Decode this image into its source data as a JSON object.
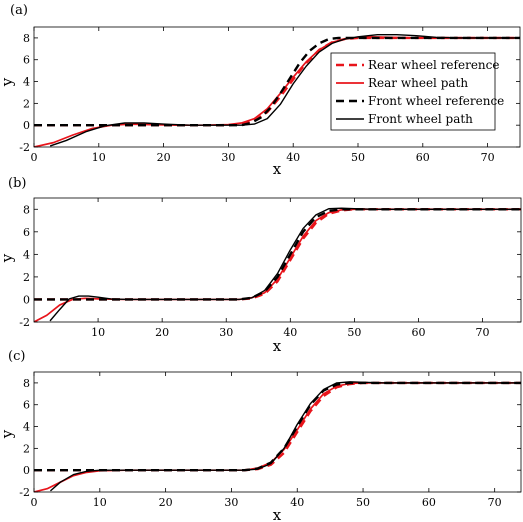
{
  "colors": {
    "rear": "#e8141b",
    "front": "#000000"
  },
  "legend": {
    "entries": [
      {
        "label": "Rear wheel reference",
        "series": "rear_reference"
      },
      {
        "label": "Rear wheel path",
        "series": "rear_path"
      },
      {
        "label": "Front wheel reference",
        "series": "front_reference"
      },
      {
        "label": "Front wheel path",
        "series": "front_path"
      }
    ]
  },
  "chart_data": [
    {
      "type": "line",
      "panel_label": "(a)",
      "xlabel": "x",
      "ylabel": "y",
      "xlim": [
        0,
        75
      ],
      "ylim": [
        -2,
        9
      ],
      "xticks": [
        0,
        10,
        20,
        30,
        40,
        50,
        60,
        70
      ],
      "yticks": [
        -2,
        0,
        2,
        4,
        6,
        8
      ],
      "grid": false,
      "legend_position": "top-right",
      "series": [
        {
          "name": "Rear wheel reference",
          "style": "dashed",
          "x": [
            0,
            30,
            32,
            34,
            36,
            38,
            40,
            42,
            44,
            46,
            48,
            50,
            75
          ],
          "y": [
            0,
            0,
            0.1,
            0.4,
            1.2,
            2.6,
            4.2,
            5.7,
            6.9,
            7.6,
            7.9,
            8,
            8
          ]
        },
        {
          "name": "Rear wheel path",
          "style": "solid",
          "x": [
            0,
            3,
            6,
            9,
            12,
            15,
            18,
            22,
            26,
            30,
            32,
            34,
            36,
            38,
            40,
            42,
            44,
            46,
            48,
            50,
            52,
            55,
            58,
            62,
            66,
            75
          ],
          "y": [
            -2,
            -1.6,
            -0.9,
            -0.3,
            0,
            0.1,
            0.05,
            0,
            0,
            0.05,
            0.2,
            0.6,
            1.5,
            2.9,
            4.4,
            5.8,
            6.9,
            7.6,
            7.9,
            8.05,
            8.1,
            8.05,
            8,
            8,
            8,
            8
          ]
        },
        {
          "name": "Front wheel reference",
          "style": "dashed",
          "x": [
            0,
            32,
            33.5,
            35,
            36.5,
            38,
            39.5,
            41,
            42.5,
            44,
            45.5,
            47,
            75
          ],
          "y": [
            0,
            0,
            0.2,
            0.7,
            1.6,
            2.9,
            4.3,
            5.7,
            6.8,
            7.5,
            7.9,
            8,
            8
          ]
        },
        {
          "name": "Front wheel path",
          "style": "solid",
          "x": [
            2.5,
            5,
            8,
            11,
            14,
            17,
            20,
            24,
            28,
            32,
            34,
            36,
            38,
            40,
            42,
            44,
            46,
            48,
            50,
            53,
            56,
            59,
            62,
            66,
            75
          ],
          "y": [
            -1.9,
            -1.4,
            -0.6,
            -0.05,
            0.2,
            0.2,
            0.1,
            0,
            0,
            0,
            0.1,
            0.6,
            1.9,
            3.8,
            5.4,
            6.7,
            7.5,
            7.9,
            8.1,
            8.3,
            8.3,
            8.2,
            8.05,
            8,
            8
          ]
        }
      ]
    },
    {
      "type": "line",
      "panel_label": "(b)",
      "xlabel": "x",
      "ylabel": "y",
      "xlim": [
        0,
        76
      ],
      "ylim": [
        -2,
        9
      ],
      "xticks": [
        10,
        20,
        30,
        40,
        50,
        60,
        70
      ],
      "yticks": [
        -2,
        0,
        2,
        4,
        6,
        8
      ],
      "grid": false,
      "series": [
        {
          "name": "Rear wheel reference",
          "style": "dashed",
          "x": [
            0,
            32,
            34,
            36,
            38,
            40,
            42,
            44,
            46,
            48,
            50,
            52,
            76
          ],
          "y": [
            0,
            0,
            0.1,
            0.5,
            1.6,
            3.5,
            5.4,
            6.8,
            7.6,
            7.9,
            8,
            8,
            8
          ]
        },
        {
          "name": "Rear wheel path",
          "style": "solid",
          "x": [
            0,
            2,
            4,
            6,
            8,
            10,
            14,
            20,
            28,
            32,
            34,
            36,
            38,
            40,
            42,
            44,
            46,
            48,
            50,
            52,
            76
          ],
          "y": [
            -2,
            -1.4,
            -0.5,
            0,
            0.1,
            0.05,
            0,
            0,
            0,
            0,
            0.15,
            0.6,
            1.8,
            3.7,
            5.6,
            7,
            7.7,
            7.95,
            8,
            8,
            8
          ]
        },
        {
          "name": "Front wheel reference",
          "style": "dashed",
          "x": [
            0,
            32,
            34,
            36,
            38,
            40,
            42,
            44,
            46,
            48,
            50,
            76
          ],
          "y": [
            0,
            0,
            0.15,
            0.7,
            2.0,
            4.0,
            6.0,
            7.3,
            7.85,
            8,
            8,
            8
          ]
        },
        {
          "name": "Front wheel path",
          "style": "solid",
          "x": [
            2.5,
            4,
            5.5,
            7,
            8.5,
            10,
            12,
            15,
            20,
            28,
            32,
            34,
            36,
            38,
            40,
            42,
            44,
            46,
            48,
            50,
            53,
            76
          ],
          "y": [
            -1.9,
            -0.9,
            0.05,
            0.3,
            0.3,
            0.2,
            0.05,
            0,
            0,
            0,
            0,
            0.15,
            0.8,
            2.3,
            4.4,
            6.3,
            7.5,
            8.05,
            8.1,
            8.05,
            8,
            8
          ]
        }
      ]
    },
    {
      "type": "line",
      "panel_label": "(c)",
      "xlabel": "x",
      "ylabel": "y",
      "xlim": [
        0,
        74
      ],
      "ylim": [
        -2,
        9
      ],
      "xticks": [
        0,
        10,
        20,
        30,
        40,
        50,
        60,
        70
      ],
      "yticks": [
        -2,
        0,
        2,
        4,
        6,
        8
      ],
      "grid": false,
      "series": [
        {
          "name": "Rear wheel reference",
          "style": "dashed",
          "x": [
            0,
            32,
            34,
            36,
            38,
            40,
            42,
            44,
            46,
            48,
            50,
            52,
            74
          ],
          "y": [
            0,
            0,
            0.1,
            0.5,
            1.6,
            3.5,
            5.4,
            6.8,
            7.6,
            7.9,
            8,
            8,
            8
          ]
        },
        {
          "name": "Rear wheel path",
          "style": "solid",
          "x": [
            0,
            2,
            4,
            6,
            8,
            10,
            14,
            20,
            28,
            32,
            34,
            36,
            38,
            40,
            42,
            44,
            46,
            48,
            50,
            52,
            74
          ],
          "y": [
            -2,
            -1.7,
            -1.1,
            -0.5,
            -0.2,
            -0.05,
            0,
            0,
            0,
            0,
            0.2,
            0.7,
            1.9,
            3.7,
            5.6,
            7,
            7.7,
            7.95,
            8,
            8,
            8
          ]
        },
        {
          "name": "Front wheel reference",
          "style": "dashed",
          "x": [
            0,
            32,
            34,
            36,
            38,
            40,
            42,
            44,
            46,
            48,
            50,
            74
          ],
          "y": [
            0,
            0,
            0.15,
            0.7,
            2.0,
            4.0,
            6.0,
            7.3,
            7.85,
            8,
            8,
            8
          ]
        },
        {
          "name": "Front wheel path",
          "style": "solid",
          "x": [
            2.5,
            4,
            6,
            8,
            10,
            13,
            18,
            28,
            32,
            34,
            36,
            38,
            40,
            42,
            44,
            46,
            48,
            50,
            53,
            74
          ],
          "y": [
            -1.9,
            -1.1,
            -0.4,
            -0.1,
            0,
            0,
            0,
            0,
            0,
            0.1,
            0.6,
            2.0,
            4.2,
            6.1,
            7.4,
            8.0,
            8.1,
            8.05,
            8,
            8
          ]
        }
      ]
    }
  ]
}
